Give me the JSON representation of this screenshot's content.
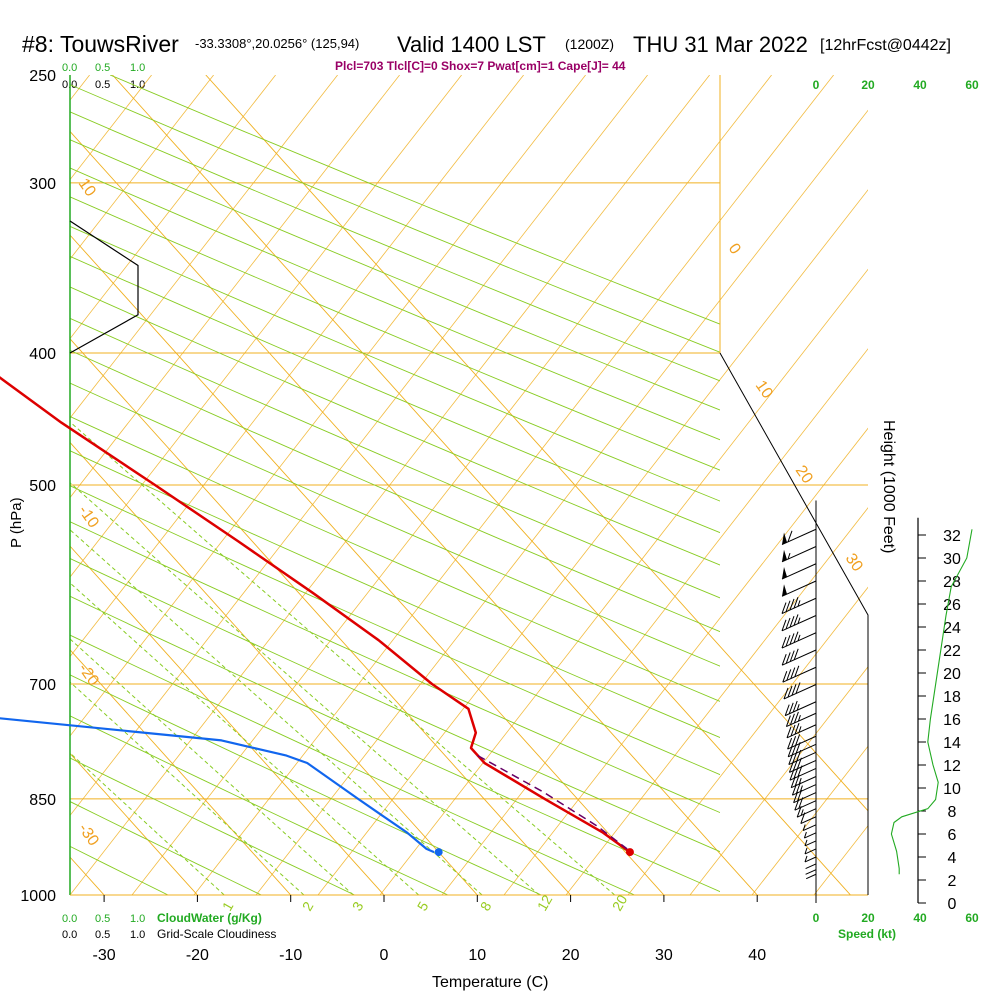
{
  "header": {
    "station": "#8: TouwsRiver",
    "location": "-33.3308°,20.0256° (125,94)",
    "valid": "Valid 1400 LST",
    "zulu": "(1200Z)",
    "date": "THU 31 Mar 2022",
    "forecast": "[12hrFcst@0442z]"
  },
  "indices": "Plcl=703 Tlcl[C]=0 Shox=7 Pwat[cm]=1 Cape[J]= 44",
  "bottom_labels": {
    "cloudwater": "CloudWater (g/Kg)",
    "cloudiness": "Grid-Scale Cloudiness",
    "scale_vals": [
      "0.0",
      "0.5",
      "1.0"
    ],
    "speed": "Speed (kt)"
  },
  "colors": {
    "temperature": "#dd0000",
    "dewpoint": "#1166ee",
    "isotherm": "#f0b020",
    "dry_adiabat": "#88cc22",
    "mixing_ratio": "#88cc22",
    "parcel": "#660066",
    "wind_speed": "#22aa22"
  },
  "chart_data": {
    "type": "skew-t",
    "xlabel": "Temperature (C)",
    "ylabel": "P (hPa)",
    "y2label": "Height (1000 Feet)",
    "x_ticks": [
      -30,
      -20,
      -10,
      0,
      10,
      20,
      30,
      40
    ],
    "y_ticks": [
      250,
      300,
      400,
      500,
      700,
      850,
      1000
    ],
    "height_ticks": [
      0,
      2,
      4,
      6,
      8,
      10,
      12,
      14,
      16,
      18,
      20,
      22,
      24,
      26,
      28,
      30,
      32
    ],
    "speed_ticks": [
      0,
      20,
      40,
      60
    ],
    "isotherm_labels": [
      "10",
      "0",
      "10",
      "20",
      "30",
      "-10",
      "-20",
      "-30"
    ],
    "mixing_ratio_labels": [
      "1",
      "2",
      "3",
      "5",
      "8",
      "12",
      "20"
    ],
    "temperature_profile": [
      {
        "p": 265,
        "t": -1.5
      },
      {
        "p": 300,
        "t": -0.5
      },
      {
        "p": 330,
        "t": 1.5
      },
      {
        "p": 360,
        "t": 4
      },
      {
        "p": 400,
        "t": 7.5
      },
      {
        "p": 450,
        "t": 11
      },
      {
        "p": 500,
        "t": 15
      },
      {
        "p": 550,
        "t": 18.5
      },
      {
        "p": 600,
        "t": 21.5
      },
      {
        "p": 650,
        "t": 24
      },
      {
        "p": 700,
        "t": 25.5
      },
      {
        "p": 730,
        "t": 27
      },
      {
        "p": 760,
        "t": 25.5
      },
      {
        "p": 780,
        "t": 23.5
      },
      {
        "p": 800,
        "t": 23.5
      },
      {
        "p": 850,
        "t": 26.5
      },
      {
        "p": 900,
        "t": 29.5
      },
      {
        "p": 930,
        "t": 30.5
      }
    ],
    "dewpoint_profile": [
      {
        "p": 265,
        "t": -26.5
      },
      {
        "p": 280,
        "t": -25
      },
      {
        "p": 300,
        "t": -20
      },
      {
        "p": 320,
        "t": -15.5
      },
      {
        "p": 340,
        "t": -13.5
      },
      {
        "p": 370,
        "t": -11
      },
      {
        "p": 400,
        "t": -10
      },
      {
        "p": 440,
        "t": -14
      },
      {
        "p": 480,
        "t": -23
      },
      {
        "p": 520,
        "t": -35
      },
      {
        "p": 550,
        "t": -45
      },
      {
        "p": 580,
        "t": -48
      },
      {
        "p": 610,
        "t": -46
      },
      {
        "p": 640,
        "t": -44
      },
      {
        "p": 670,
        "t": -38.5
      },
      {
        "p": 690,
        "t": -28
      },
      {
        "p": 700,
        "t": -27
      },
      {
        "p": 710,
        "t": -28.5
      },
      {
        "p": 725,
        "t": -30
      },
      {
        "p": 740,
        "t": -25.5
      },
      {
        "p": 770,
        "t": -2.5
      },
      {
        "p": 790,
        "t": 3
      },
      {
        "p": 800,
        "t": 4.5
      },
      {
        "p": 850,
        "t": 6.5
      },
      {
        "p": 900,
        "t": 8.5
      },
      {
        "p": 925,
        "t": 9
      },
      {
        "p": 930,
        "t": 9.5
      }
    ],
    "parcel_profile": [
      {
        "p": 790,
        "t": 23.5
      },
      {
        "p": 840,
        "t": 27
      },
      {
        "p": 890,
        "t": 29.5
      },
      {
        "p": 925,
        "t": 30.5
      }
    ],
    "surface_temperature": {
      "p": 930,
      "t": 30.5
    },
    "surface_dewpoint": {
      "p": 930,
      "t": 10
    },
    "cloudiness_profile": [
      {
        "p": 320,
        "c": 0.0
      },
      {
        "p": 345,
        "c": 0.5
      },
      {
        "p": 375,
        "c": 0.5
      },
      {
        "p": 400,
        "c": 0.0
      }
    ],
    "wind_speed_profile": [
      {
        "h": 32.5,
        "s": 60
      },
      {
        "h": 30,
        "s": 58
      },
      {
        "h": 27.5,
        "s": 52
      },
      {
        "h": 25,
        "s": 50
      },
      {
        "h": 22,
        "s": 48
      },
      {
        "h": 19,
        "s": 46
      },
      {
        "h": 16,
        "s": 44
      },
      {
        "h": 14,
        "s": 43
      },
      {
        "h": 12,
        "s": 45
      },
      {
        "h": 10.5,
        "s": 47
      },
      {
        "h": 9,
        "s": 46
      },
      {
        "h": 8.2,
        "s": 43
      },
      {
        "h": 7.5,
        "s": 33
      },
      {
        "h": 7,
        "s": 30
      },
      {
        "h": 6,
        "s": 29
      },
      {
        "h": 4.5,
        "s": 31
      },
      {
        "h": 3,
        "s": 32
      },
      {
        "h": 2.5,
        "s": 32
      }
    ],
    "wind_barbs": [
      {
        "h": 32.5,
        "kt": 60
      },
      {
        "h": 31,
        "kt": 55
      },
      {
        "h": 29.5,
        "kt": 50
      },
      {
        "h": 28,
        "kt": 50
      },
      {
        "h": 26.5,
        "kt": 48
      },
      {
        "h": 25,
        "kt": 46
      },
      {
        "h": 23.5,
        "kt": 45
      },
      {
        "h": 22,
        "kt": 43
      },
      {
        "h": 20.5,
        "kt": 42
      },
      {
        "h": 19,
        "kt": 40
      },
      {
        "h": 17.5,
        "kt": 38
      },
      {
        "h": 16.5,
        "kt": 36
      },
      {
        "h": 15.5,
        "kt": 35
      },
      {
        "h": 14.5,
        "kt": 34
      },
      {
        "h": 13.8,
        "kt": 33
      },
      {
        "h": 13.1,
        "kt": 32
      },
      {
        "h": 12.4,
        "kt": 31
      },
      {
        "h": 11.7,
        "kt": 30
      },
      {
        "h": 11,
        "kt": 28
      },
      {
        "h": 10.3,
        "kt": 26
      },
      {
        "h": 9.6,
        "kt": 24
      },
      {
        "h": 8.9,
        "kt": 22
      },
      {
        "h": 8.2,
        "kt": 18
      },
      {
        "h": 7.5,
        "kt": 12
      },
      {
        "h": 6.8,
        "kt": 8
      },
      {
        "h": 6.1,
        "kt": 6
      },
      {
        "h": 5.4,
        "kt": 5
      },
      {
        "h": 4.7,
        "kt": 5
      },
      {
        "h": 4.0,
        "kt": 5
      },
      {
        "h": 3.4,
        "kt": 4
      },
      {
        "h": 2.9,
        "kt": 4
      },
      {
        "h": 2.5,
        "kt": 3
      }
    ]
  }
}
